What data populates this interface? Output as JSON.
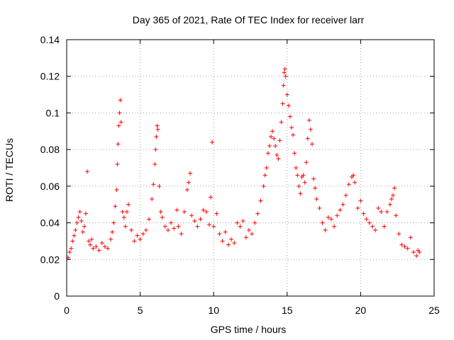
{
  "chart_data": {
    "type": "scatter",
    "title": "Day 365 of 2021, Rate Of TEC Index for receiver larr",
    "xlabel": "GPS time / hours",
    "ylabel": "ROTI / TECUs",
    "xlim": [
      0,
      25
    ],
    "ylim": [
      0,
      0.14
    ],
    "xticks": [
      "0",
      "5",
      "10",
      "15",
      "20",
      "25"
    ],
    "yticks": [
      "0",
      "0.02",
      "0.04",
      "0.06",
      "0.08",
      "0.1",
      "0.12",
      "0.14"
    ],
    "grid": true,
    "marker": "plus",
    "series_color": "#ff0000",
    "points": [
      [
        0.1,
        0.021
      ],
      [
        0.2,
        0.024
      ],
      [
        0.3,
        0.026
      ],
      [
        0.4,
        0.03
      ],
      [
        0.5,
        0.033
      ],
      [
        0.6,
        0.036
      ],
      [
        0.7,
        0.04
      ],
      [
        0.8,
        0.043
      ],
      [
        0.9,
        0.046
      ],
      [
        1.0,
        0.041
      ],
      [
        1.1,
        0.035
      ],
      [
        1.2,
        0.038
      ],
      [
        1.3,
        0.045
      ],
      [
        1.4,
        0.068
      ],
      [
        1.5,
        0.03
      ],
      [
        1.6,
        0.028
      ],
      [
        1.7,
        0.031
      ],
      [
        1.8,
        0.026
      ],
      [
        2.0,
        0.027
      ],
      [
        2.2,
        0.025
      ],
      [
        2.4,
        0.029
      ],
      [
        2.6,
        0.027
      ],
      [
        2.8,
        0.026
      ],
      [
        3.0,
        0.031
      ],
      [
        3.1,
        0.035
      ],
      [
        3.2,
        0.04
      ],
      [
        3.3,
        0.049
      ],
      [
        3.4,
        0.058
      ],
      [
        3.45,
        0.072
      ],
      [
        3.5,
        0.083
      ],
      [
        3.55,
        0.093
      ],
      [
        3.6,
        0.1
      ],
      [
        3.65,
        0.107
      ],
      [
        3.7,
        0.095
      ],
      [
        3.8,
        0.046
      ],
      [
        3.9,
        0.043
      ],
      [
        4.0,
        0.038
      ],
      [
        4.1,
        0.046
      ],
      [
        4.2,
        0.05
      ],
      [
        4.4,
        0.036
      ],
      [
        4.6,
        0.03
      ],
      [
        4.8,
        0.033
      ],
      [
        5.0,
        0.031
      ],
      [
        5.2,
        0.034
      ],
      [
        5.4,
        0.036
      ],
      [
        5.6,
        0.042
      ],
      [
        5.8,
        0.053
      ],
      [
        5.9,
        0.061
      ],
      [
        6.0,
        0.072
      ],
      [
        6.05,
        0.08
      ],
      [
        6.1,
        0.087
      ],
      [
        6.15,
        0.093
      ],
      [
        6.2,
        0.091
      ],
      [
        6.3,
        0.06
      ],
      [
        6.4,
        0.046
      ],
      [
        6.5,
        0.043
      ],
      [
        6.7,
        0.038
      ],
      [
        6.9,
        0.036
      ],
      [
        7.1,
        0.04
      ],
      [
        7.3,
        0.037
      ],
      [
        7.5,
        0.047
      ],
      [
        7.6,
        0.038
      ],
      [
        7.8,
        0.034
      ],
      [
        8.0,
        0.046
      ],
      [
        8.2,
        0.058
      ],
      [
        8.3,
        0.062
      ],
      [
        8.4,
        0.067
      ],
      [
        8.5,
        0.044
      ],
      [
        8.7,
        0.041
      ],
      [
        8.9,
        0.038
      ],
      [
        9.1,
        0.042
      ],
      [
        9.3,
        0.047
      ],
      [
        9.5,
        0.046
      ],
      [
        9.7,
        0.039
      ],
      [
        9.8,
        0.054
      ],
      [
        9.9,
        0.084
      ],
      [
        10.0,
        0.038
      ],
      [
        10.2,
        0.045
      ],
      [
        10.4,
        0.034
      ],
      [
        10.6,
        0.03
      ],
      [
        10.8,
        0.035
      ],
      [
        11.0,
        0.028
      ],
      [
        11.2,
        0.031
      ],
      [
        11.4,
        0.029
      ],
      [
        11.6,
        0.04
      ],
      [
        11.8,
        0.038
      ],
      [
        12.0,
        0.041
      ],
      [
        12.2,
        0.032
      ],
      [
        12.4,
        0.036
      ],
      [
        12.6,
        0.034
      ],
      [
        12.8,
        0.04
      ],
      [
        13.0,
        0.045
      ],
      [
        13.2,
        0.052
      ],
      [
        13.4,
        0.06
      ],
      [
        13.5,
        0.066
      ],
      [
        13.6,
        0.07
      ],
      [
        13.7,
        0.078
      ],
      [
        13.8,
        0.082
      ],
      [
        13.9,
        0.087
      ],
      [
        14.0,
        0.09
      ],
      [
        14.1,
        0.086
      ],
      [
        14.2,
        0.082
      ],
      [
        14.3,
        0.077
      ],
      [
        14.4,
        0.075
      ],
      [
        14.5,
        0.085
      ],
      [
        14.6,
        0.095
      ],
      [
        14.7,
        0.105
      ],
      [
        14.75,
        0.115
      ],
      [
        14.8,
        0.122
      ],
      [
        14.85,
        0.124
      ],
      [
        14.9,
        0.12
      ],
      [
        15.0,
        0.11
      ],
      [
        15.1,
        0.104
      ],
      [
        15.2,
        0.098
      ],
      [
        15.3,
        0.092
      ],
      [
        15.4,
        0.088
      ],
      [
        15.5,
        0.078
      ],
      [
        15.6,
        0.07
      ],
      [
        15.7,
        0.066
      ],
      [
        15.8,
        0.06
      ],
      [
        15.9,
        0.056
      ],
      [
        16.0,
        0.065
      ],
      [
        16.1,
        0.066
      ],
      [
        16.2,
        0.062
      ],
      [
        16.3,
        0.073
      ],
      [
        16.4,
        0.086
      ],
      [
        16.5,
        0.096
      ],
      [
        16.6,
        0.091
      ],
      [
        16.7,
        0.083
      ],
      [
        16.8,
        0.064
      ],
      [
        16.9,
        0.059
      ],
      [
        17.0,
        0.053
      ],
      [
        17.2,
        0.048
      ],
      [
        17.4,
        0.04
      ],
      [
        17.6,
        0.036
      ],
      [
        17.8,
        0.043
      ],
      [
        18.0,
        0.042
      ],
      [
        18.2,
        0.038
      ],
      [
        18.4,
        0.044
      ],
      [
        18.6,
        0.047
      ],
      [
        18.8,
        0.05
      ],
      [
        19.0,
        0.055
      ],
      [
        19.2,
        0.061
      ],
      [
        19.4,
        0.065
      ],
      [
        19.5,
        0.066
      ],
      [
        19.6,
        0.062
      ],
      [
        19.8,
        0.048
      ],
      [
        20.0,
        0.052
      ],
      [
        20.2,
        0.045
      ],
      [
        20.4,
        0.042
      ],
      [
        20.6,
        0.04
      ],
      [
        20.8,
        0.038
      ],
      [
        21.0,
        0.036
      ],
      [
        21.2,
        0.048
      ],
      [
        21.4,
        0.046
      ],
      [
        21.6,
        0.038
      ],
      [
        21.8,
        0.046
      ],
      [
        22.0,
        0.05
      ],
      [
        22.1,
        0.053
      ],
      [
        22.2,
        0.055
      ],
      [
        22.3,
        0.059
      ],
      [
        22.4,
        0.044
      ],
      [
        22.6,
        0.034
      ],
      [
        22.8,
        0.028
      ],
      [
        23.0,
        0.027
      ],
      [
        23.2,
        0.026
      ],
      [
        23.4,
        0.032
      ],
      [
        23.6,
        0.024
      ],
      [
        23.8,
        0.022
      ],
      [
        23.9,
        0.025
      ],
      [
        24.0,
        0.024
      ]
    ]
  }
}
